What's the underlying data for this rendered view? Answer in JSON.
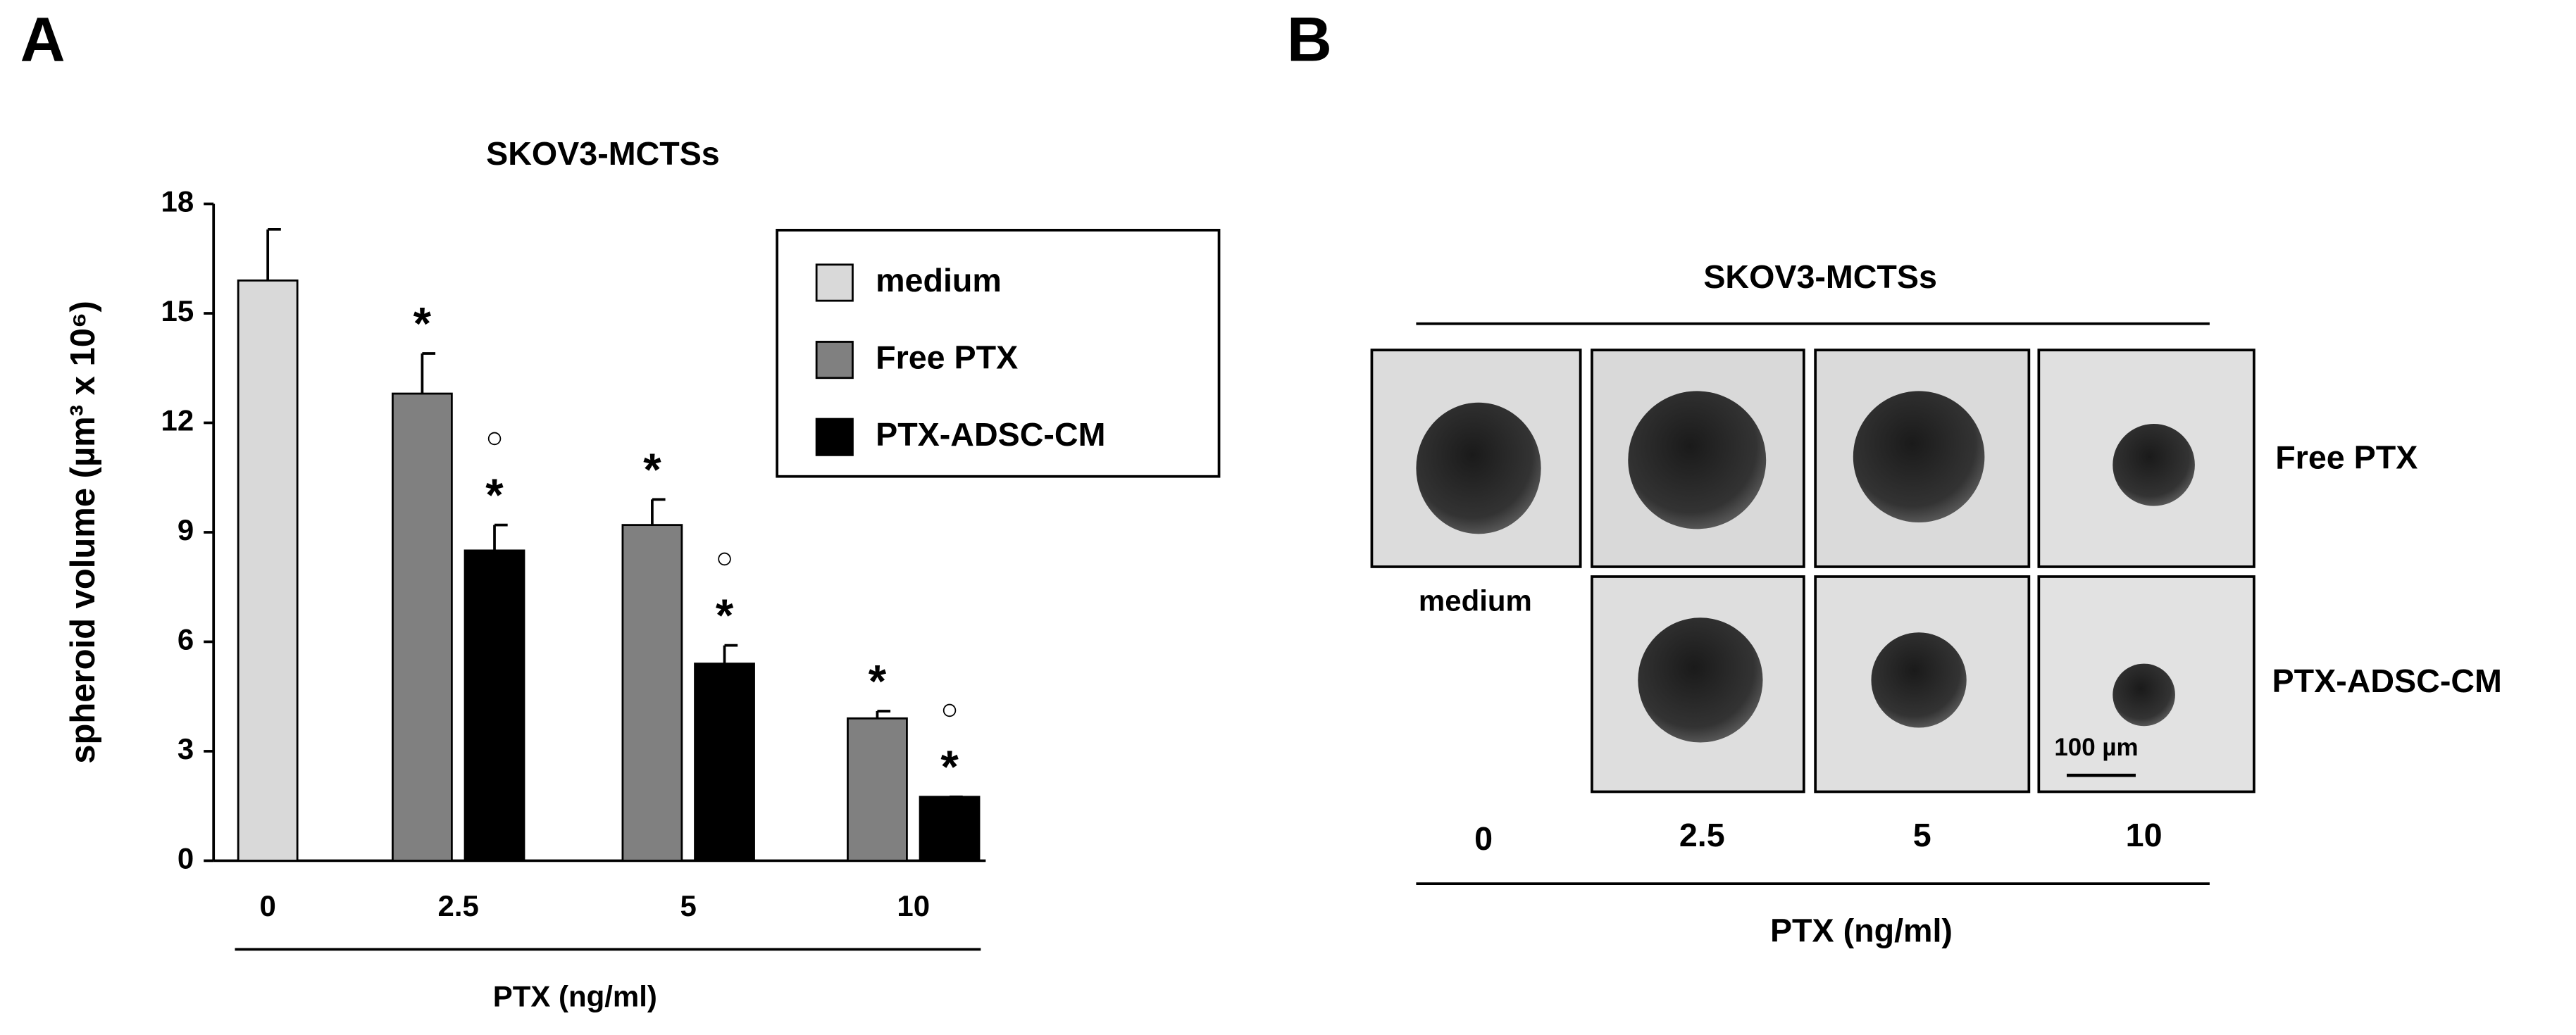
{
  "chart_data": {
    "type": "bar",
    "panel_label": "A",
    "title": "SKOV3-MCTSs",
    "y_label": "spheroid volume (µm³ x 10⁶)",
    "x_label": "PTX (ng/ml)",
    "categories": [
      "0",
      "2.5",
      "5",
      "10"
    ],
    "series": [
      {
        "name": "medium",
        "color": "#d9d9d9",
        "values": [
          15.9,
          null,
          null,
          null
        ],
        "errors": [
          1.4,
          null,
          null,
          null
        ],
        "annotations": [
          null,
          null,
          null,
          null
        ]
      },
      {
        "name": "Free PTX",
        "color": "#808080",
        "values": [
          null,
          12.8,
          9.2,
          3.9
        ],
        "errors": [
          null,
          1.1,
          0.7,
          0.2
        ],
        "annotations": [
          null,
          [
            "*"
          ],
          [
            "*"
          ],
          [
            "*"
          ]
        ]
      },
      {
        "name": "PTX-ADSC-CM",
        "color": "#000000",
        "values": [
          null,
          8.5,
          5.4,
          1.75
        ],
        "errors": [
          null,
          0.7,
          0.5,
          0
        ],
        "annotations": [
          null,
          [
            "○",
            "*"
          ],
          [
            "○",
            "*"
          ],
          [
            "○",
            "*"
          ]
        ]
      }
    ],
    "ylim": [
      0,
      18
    ],
    "yticks": [
      0,
      3,
      6,
      9,
      12,
      15,
      18
    ],
    "grid": false,
    "legend": "top-right"
  },
  "panel_b": {
    "panel_label": "B",
    "title": "SKOV3-MCTSs",
    "control_label": "medium",
    "row_labels": [
      "Free PTX",
      "PTX-ADSC-CM"
    ],
    "column_labels": [
      "0",
      "2.5",
      "5",
      "10"
    ],
    "x_label": "PTX (ng/ml)",
    "scale_bar": "100 µm"
  }
}
